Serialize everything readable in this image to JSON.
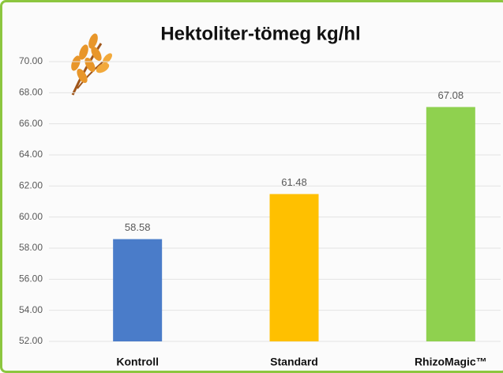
{
  "chart_data": {
    "type": "bar",
    "title": "Hektoliter-tömeg kg/hl",
    "categories": [
      "Kontroll",
      "Standard",
      "RhizoMagic™"
    ],
    "values": [
      58.58,
      61.48,
      67.08
    ],
    "colors": [
      "#4a7cc9",
      "#ffc000",
      "#8fd14f"
    ],
    "ylim": [
      52,
      70
    ],
    "yticks": [
      {
        "value": 52,
        "label": "52.00"
      },
      {
        "value": 54,
        "label": "54.00"
      },
      {
        "value": 56,
        "label": "56.00"
      },
      {
        "value": 58,
        "label": "58.00"
      },
      {
        "value": 60,
        "label": "60.00"
      },
      {
        "value": 62,
        "label": "62.00"
      },
      {
        "value": 64,
        "label": "64.00"
      },
      {
        "value": 66,
        "label": "66.00"
      },
      {
        "value": 68,
        "label": "68.00"
      },
      {
        "value": 70,
        "label": "70.00"
      }
    ],
    "grid": true
  }
}
